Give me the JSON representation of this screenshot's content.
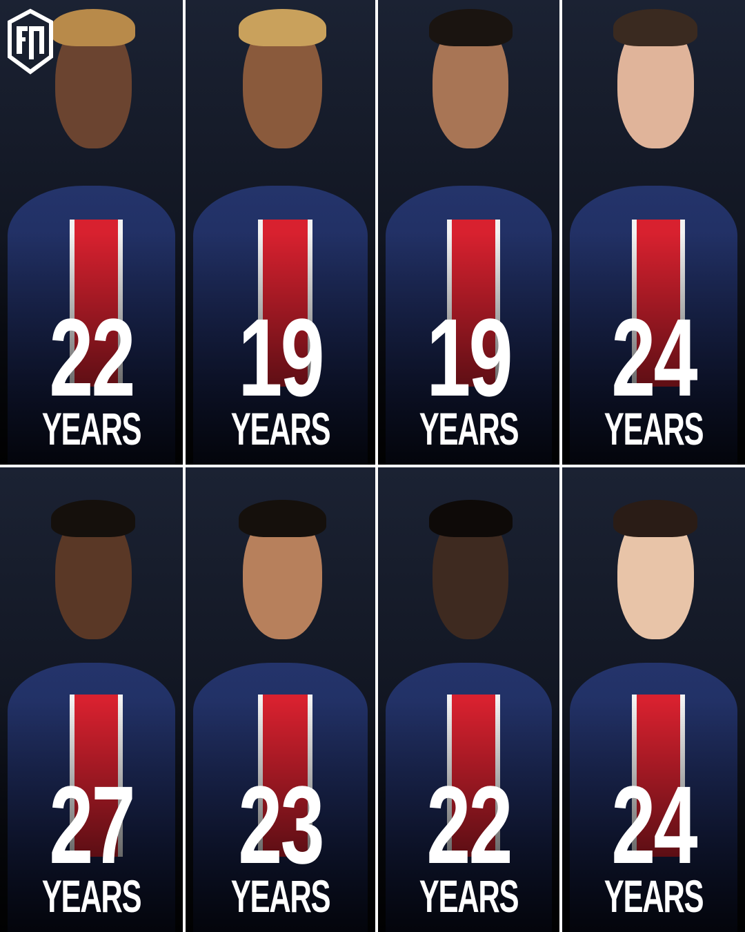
{
  "brand": {
    "logo": "FM"
  },
  "colors": {
    "jersey": "#1e2c5e",
    "stripe": "#d8212f",
    "text": "#ffffff"
  },
  "players": [
    {
      "age": "22",
      "unit": "YEARS",
      "skin": "#6b4430",
      "hair": "#b88a4a"
    },
    {
      "age": "19",
      "unit": "YEARS",
      "skin": "#8a5a3c",
      "hair": "#c9a15c"
    },
    {
      "age": "19",
      "unit": "YEARS",
      "skin": "#a87555",
      "hair": "#1a1410"
    },
    {
      "age": "24",
      "unit": "YEARS",
      "skin": "#e0b49a",
      "hair": "#3a2a20"
    },
    {
      "age": "27",
      "unit": "YEARS",
      "skin": "#5a3826",
      "hair": "#15100c"
    },
    {
      "age": "23",
      "unit": "YEARS",
      "skin": "#b7805c",
      "hair": "#15100c"
    },
    {
      "age": "22",
      "unit": "YEARS",
      "skin": "#3e2a20",
      "hair": "#0e0a08"
    },
    {
      "age": "24",
      "unit": "YEARS",
      "skin": "#e8c4a8",
      "hair": "#2a1c16"
    }
  ]
}
